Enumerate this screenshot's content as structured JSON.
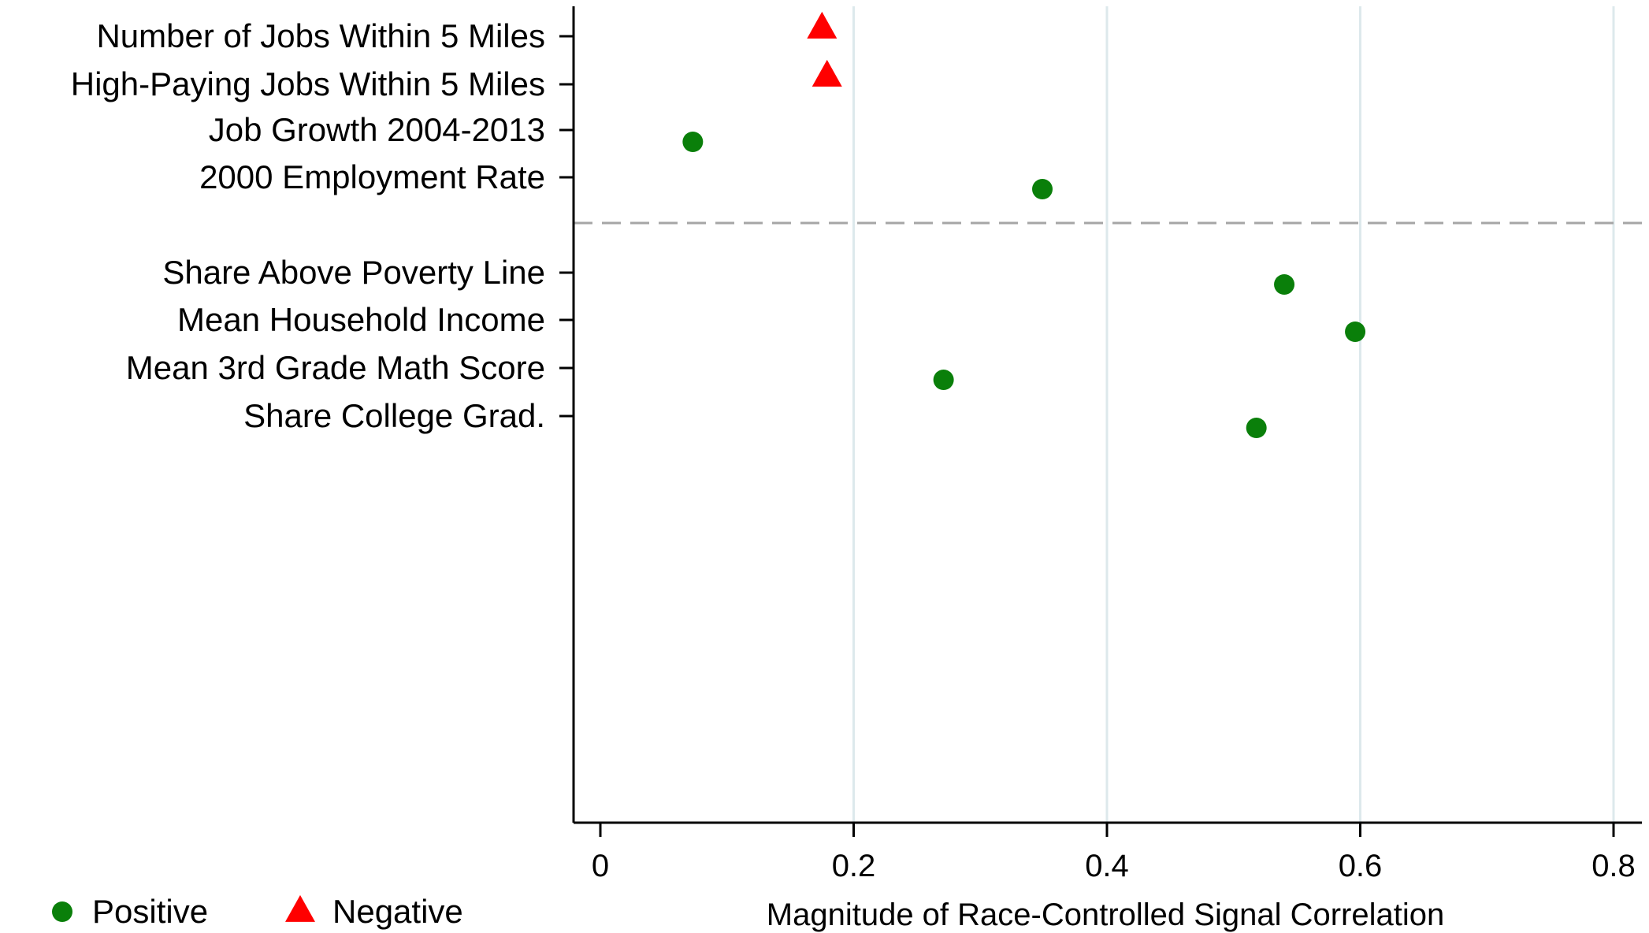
{
  "chart_data": {
    "type": "scatter",
    "orientation": "horizontal",
    "title": "",
    "xlabel": "Magnitude of Race-Controlled Signal Correlation",
    "ylabel": "",
    "xlim": [
      0,
      0.8
    ],
    "xticks": [
      0,
      0.2,
      0.4,
      0.6,
      0.8
    ],
    "xtick_labels": [
      "0",
      "0.2",
      "0.4",
      "0.6",
      "0.8"
    ],
    "grid": "vertical lines at x ticks",
    "categories": [
      "Number of Jobs Within 5 Miles",
      "High-Paying Jobs Within 5 Miles",
      "Job Growth 2004-2013",
      "2000 Employment Rate",
      "Share Above Poverty Line",
      "Mean Household Income",
      "Mean 3rd Grade Math Score",
      "Share College Grad."
    ],
    "group_separator_after_index": 3,
    "points": [
      {
        "category": "Number of Jobs Within 5 Miles",
        "value": 0.175,
        "sign": "negative"
      },
      {
        "category": "High-Paying Jobs Within 5 Miles",
        "value": 0.179,
        "sign": "negative"
      },
      {
        "category": "Job Growth 2004-2013",
        "value": 0.073,
        "sign": "positive"
      },
      {
        "category": "2000 Employment Rate",
        "value": 0.349,
        "sign": "positive"
      },
      {
        "category": "Share Above Poverty Line",
        "value": 0.54,
        "sign": "positive"
      },
      {
        "category": "Mean Household Income",
        "value": 0.596,
        "sign": "positive"
      },
      {
        "category": "Mean 3rd Grade Math Score",
        "value": 0.271,
        "sign": "positive"
      },
      {
        "category": "Share College Grad.",
        "value": 0.518,
        "sign": "positive"
      }
    ],
    "legend": {
      "placement": "bottom-left",
      "entries": [
        {
          "key": "positive",
          "label": "Positive",
          "marker": "circle",
          "color": "#0a7f0a"
        },
        {
          "key": "negative",
          "label": "Negative",
          "marker": "triangle",
          "color": "#ff0000"
        }
      ]
    }
  },
  "colors": {
    "positive": "#0a7f0a",
    "negative": "#ff0000",
    "axis": "#000000",
    "grid": "#dde9ec",
    "separator": "#a6a6a6"
  }
}
